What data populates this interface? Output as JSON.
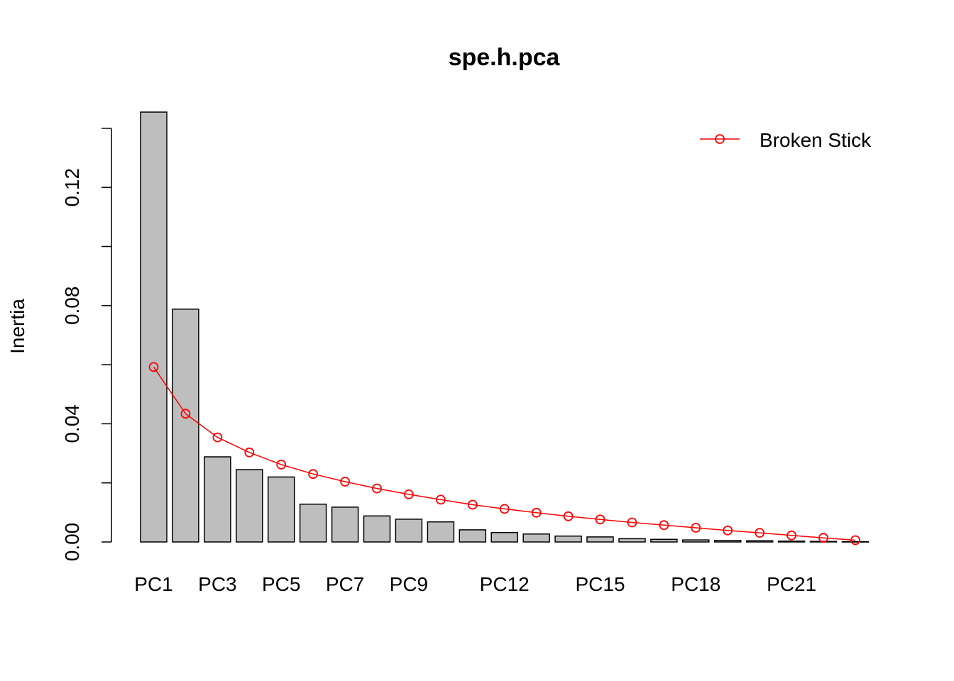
{
  "chart_data": {
    "type": "bar",
    "title": "spe.h.pca",
    "xlabel": "",
    "ylabel": "Inertia",
    "ylim": [
      0,
      0.14
    ],
    "yticks": [
      "0.00",
      "0.04",
      "0.08",
      "0.12"
    ],
    "categories": [
      "PC1",
      "PC2",
      "PC3",
      "PC4",
      "PC5",
      "PC6",
      "PC7",
      "PC8",
      "PC9",
      "PC10",
      "PC11",
      "PC12",
      "PC13",
      "PC14",
      "PC15",
      "PC16",
      "PC17",
      "PC18",
      "PC19",
      "PC20",
      "PC21",
      "PC22",
      "PC23"
    ],
    "category_labels_shown": [
      "PC1",
      "",
      "PC3",
      "",
      "PC5",
      "",
      "PC7",
      "",
      "PC9",
      "",
      "",
      "PC12",
      "",
      "",
      "PC15",
      "",
      "",
      "PC18",
      "",
      "",
      "PC21",
      "",
      ""
    ],
    "series": [
      {
        "kind": "bar",
        "values": [
          0.1455,
          0.0788,
          0.0288,
          0.0245,
          0.022,
          0.0128,
          0.0118,
          0.0088,
          0.0077,
          0.0068,
          0.0041,
          0.0032,
          0.0027,
          0.002,
          0.0017,
          0.0011,
          0.0009,
          0.0007,
          0.0005,
          0.0004,
          0.0003,
          0.0002,
          0.0001
        ],
        "color": "#bebebe"
      },
      {
        "name": "Broken Stick",
        "kind": "line",
        "values": [
          0.0592,
          0.0434,
          0.0354,
          0.0303,
          0.0262,
          0.023,
          0.0204,
          0.0181,
          0.0161,
          0.0143,
          0.0126,
          0.0112,
          0.0099,
          0.0087,
          0.0076,
          0.0066,
          0.0057,
          0.0048,
          0.0039,
          0.0031,
          0.0022,
          0.0014,
          0.0006
        ],
        "color": "#ff0000"
      }
    ],
    "legend": {
      "placement": "top-right",
      "label": "Broken Stick"
    }
  }
}
